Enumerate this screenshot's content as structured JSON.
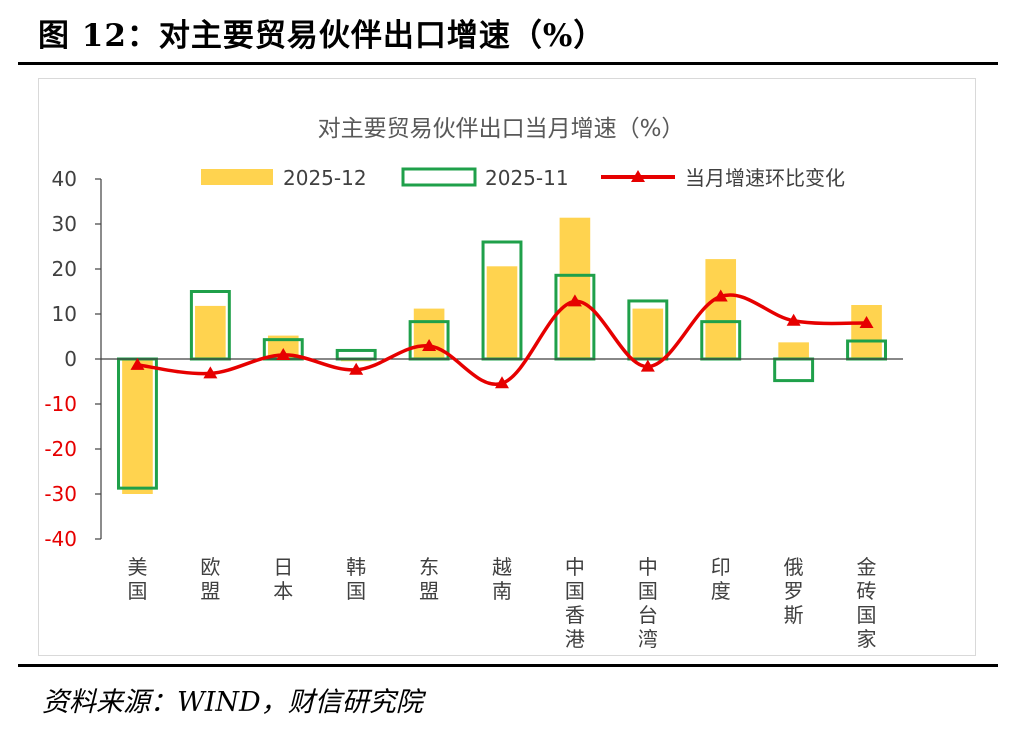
{
  "figure_title": "图 12：对主要贸易伙伴出口增速（%）",
  "source": "资料来源：WIND，财信研究院",
  "colors": {
    "bar_dec": "#FFD34F",
    "bar_nov_outline": "#1FA04A",
    "line": "#E60000",
    "axis": "#404040",
    "negative_tick": "#E60000",
    "title_text": "#595959"
  },
  "chart_data": {
    "type": "bar",
    "title": "对主要贸易伙伴出口当月增速（%）",
    "categories": [
      "美国",
      "欧盟",
      "日本",
      "韩国",
      "东盟",
      "越南",
      "中国香港",
      "中国台湾",
      "印度",
      "俄罗斯",
      "金砖国家"
    ],
    "ylim": [
      -40,
      40
    ],
    "yticks": [
      "40",
      "30",
      "20",
      "10",
      "0",
      "-10",
      "-20",
      "-30",
      "-40"
    ],
    "grid": false,
    "legend_position": "top",
    "series": [
      {
        "name": "2025-12",
        "kind": "bar-filled",
        "values": [
          -30.0,
          11.8,
          5.2,
          -0.5,
          11.2,
          20.6,
          31.4,
          11.2,
          22.2,
          3.7,
          12.0
        ]
      },
      {
        "name": "2025-11",
        "kind": "bar-outline",
        "values": [
          -28.7,
          15.0,
          4.3,
          1.9,
          8.3,
          26.0,
          18.6,
          12.9,
          8.3,
          -4.8,
          4.0
        ]
      },
      {
        "name": "当月增速环比变化",
        "kind": "line-smooth-triangle",
        "values": [
          -1.3,
          -3.2,
          0.9,
          -2.4,
          2.9,
          -5.4,
          12.8,
          -1.7,
          13.9,
          8.5,
          8.0
        ]
      }
    ]
  }
}
